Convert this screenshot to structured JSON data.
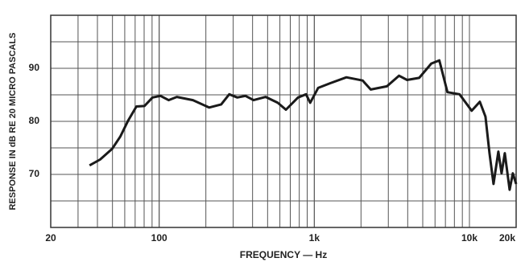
{
  "chart_data": {
    "type": "line",
    "y_label": "RESPONSE IN dB RE 20 MICRO PASCALS",
    "x_label": "FREQUENCY — Hz",
    "x_scale": "log",
    "grid": true,
    "x": [
      35.6,
      41.6,
      49.7,
      56.1,
      63.2,
      71.3,
      80.4,
      90.6,
      102,
      115,
      130,
      165,
      210,
      251,
      283,
      319,
      360,
      406,
      486,
      582,
      656,
      785,
      885,
      940,
      1059,
      1268,
      1611,
      2049,
      2310,
      2937,
      3514,
      3963,
      4742,
      5675,
      6399,
      7215,
      8634,
      10340,
      11660,
      12680,
      13460,
      14290,
      15350,
      16100,
      16900,
      18160,
      19050,
      20000
    ],
    "series": [
      {
        "color": "#1a1a1a",
        "values": [
          71.7,
          72.8,
          74.8,
          77.1,
          80.2,
          82.8,
          82.9,
          84.5,
          84.8,
          84.0,
          84.6,
          84.0,
          82.6,
          83.2,
          85.1,
          84.5,
          84.8,
          84.0,
          84.6,
          83.5,
          82.2,
          84.5,
          85.1,
          83.5,
          86.3,
          87.2,
          88.3,
          87.7,
          86.0,
          86.6,
          88.6,
          87.8,
          88.2,
          90.9,
          91.5,
          85.5,
          85.1,
          82.0,
          83.7,
          80.9,
          74.0,
          68.2,
          74.3,
          70.2,
          74.0,
          67.1,
          70.2,
          68.2
        ]
      }
    ],
    "xlim": [
      20,
      20000
    ],
    "xticks": [
      20,
      100,
      {
        "value": 1000,
        "label": "1k"
      },
      {
        "value": 10000,
        "label": "10k"
      },
      {
        "value": 20000,
        "label": "20k"
      }
    ],
    "ylim": [
      60,
      100
    ],
    "yticks": [
      70,
      80,
      90
    ]
  }
}
